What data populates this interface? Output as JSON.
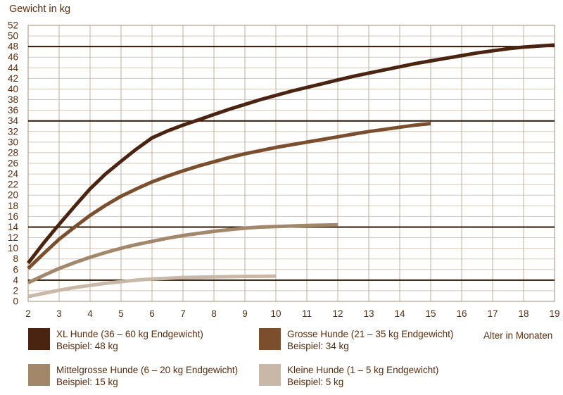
{
  "colors": {
    "text": "#5a2c0e",
    "grid_h": "#d4c8ba",
    "grid_v": "#c2b09c",
    "border": "#b3a18c",
    "reference_line": "#2e1503"
  },
  "chart_data": {
    "type": "line",
    "title": "Gewicht in kg",
    "xlabel": "Alter in Monaten",
    "ylabel": "Gewicht in kg",
    "xlim": [
      2,
      19
    ],
    "ylim": [
      0,
      52
    ],
    "xticks": [
      2,
      3,
      4,
      5,
      6,
      7,
      8,
      9,
      10,
      11,
      12,
      13,
      14,
      15,
      16,
      17,
      18,
      19
    ],
    "yticks": [
      0,
      2,
      4,
      6,
      8,
      10,
      12,
      14,
      16,
      18,
      20,
      22,
      24,
      26,
      28,
      30,
      32,
      34,
      36,
      38,
      40,
      42,
      44,
      46,
      48,
      50,
      52
    ],
    "grid": true,
    "legend_position": "bottom",
    "reference_lines": [
      48,
      34,
      14,
      4
    ],
    "series": [
      {
        "id": "xl",
        "label": "XL Hunde (36 – 60 kg Endgewicht)",
        "example": "Beispiel: 48 kg",
        "color": "#4a2410",
        "x": [
          2,
          2.5,
          3,
          3.5,
          4,
          4.5,
          5,
          5.5,
          6,
          6.5,
          7,
          7.5,
          8,
          8.5,
          9,
          9.5,
          10,
          10.5,
          11,
          11.5,
          12,
          12.5,
          13,
          13.5,
          14,
          14.5,
          15,
          15.5,
          16,
          16.5,
          17,
          17.5,
          18,
          18.5,
          19
        ],
        "y": [
          7.2,
          11,
          14.5,
          17.9,
          21.2,
          24,
          26.4,
          28.7,
          30.8,
          32.1,
          33.2,
          34.2,
          35.2,
          36.2,
          37.1,
          38,
          38.8,
          39.6,
          40.3,
          41,
          41.7,
          42.4,
          43,
          43.6,
          44.2,
          44.8,
          45.3,
          45.8,
          46.3,
          46.8,
          47.2,
          47.6,
          47.9,
          48.1,
          48.3
        ]
      },
      {
        "id": "grosse",
        "label": "Grosse Hunde (21 – 35 kg Endgewicht)",
        "example": "Beispiel: 34 kg",
        "color": "#7b4f2e",
        "x": [
          2,
          2.5,
          3,
          3.5,
          4,
          4.5,
          5,
          5.5,
          6,
          6.5,
          7,
          7.5,
          8,
          8.5,
          9,
          9.5,
          10,
          10.5,
          11,
          11.5,
          12,
          12.5,
          13,
          13.5,
          14,
          14.5,
          15
        ],
        "y": [
          6.2,
          9,
          11.7,
          14,
          16.2,
          18.1,
          19.8,
          21.2,
          22.5,
          23.6,
          24.6,
          25.5,
          26.3,
          27.1,
          27.8,
          28.4,
          29,
          29.5,
          30,
          30.5,
          31,
          31.5,
          32,
          32.4,
          32.8,
          33.2,
          33.5
        ]
      },
      {
        "id": "mittelgrosse",
        "label": "Mittelgrosse Hunde (6 – 20 kg Endgewicht)",
        "example": "Beispiel: 15 kg",
        "color": "#a3876a",
        "x": [
          2,
          2.5,
          3,
          3.5,
          4,
          4.5,
          5,
          5.5,
          6,
          6.5,
          7,
          7.5,
          8,
          8.5,
          9,
          9.5,
          10,
          10.5,
          11,
          11.5,
          12
        ],
        "y": [
          3.5,
          4.9,
          6.2,
          7.3,
          8.3,
          9.2,
          10,
          10.7,
          11.3,
          11.9,
          12.4,
          12.8,
          13.2,
          13.5,
          13.8,
          14,
          14.1,
          14.2,
          14.3,
          14.35,
          14.4
        ]
      },
      {
        "id": "kleine",
        "label": "Kleine Hunde (1 – 5 kg Endgewicht)",
        "example": "Beispiel: 5 kg",
        "color": "#c9b8a8",
        "x": [
          2,
          2.5,
          3,
          3.5,
          4,
          4.5,
          5,
          5.5,
          6,
          6.5,
          7,
          7.5,
          8,
          8.5,
          9,
          9.5,
          10
        ],
        "y": [
          0.9,
          1.5,
          2.1,
          2.6,
          3,
          3.4,
          3.7,
          4,
          4.2,
          4.35,
          4.5,
          4.55,
          4.6,
          4.65,
          4.7,
          4.72,
          4.75
        ]
      }
    ]
  }
}
